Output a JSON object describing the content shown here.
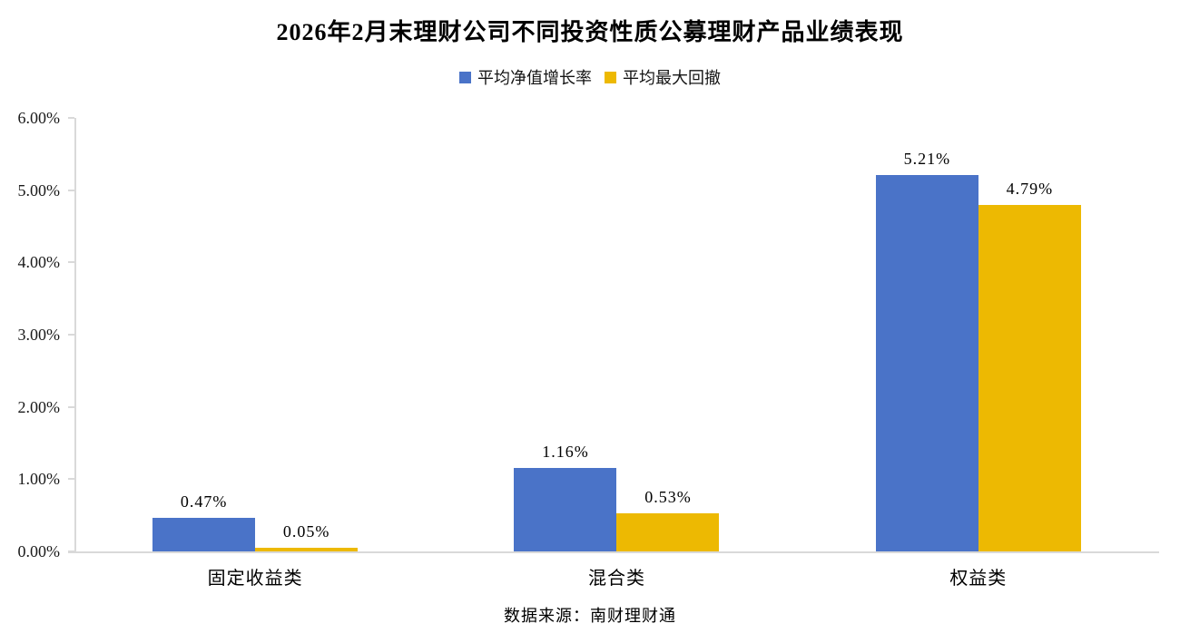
{
  "source_note": "数据来源：南财理财通",
  "chart_data": {
    "type": "bar",
    "title": "2026年2月末理财公司不同投资性质公募理财产品业绩表现",
    "categories": [
      "固定收益类",
      "混合类",
      "权益类"
    ],
    "series": [
      {
        "name": "平均净值增长率",
        "color": "#4a73c8",
        "values": [
          0.47,
          1.16,
          5.21
        ],
        "labels": [
          "0.47%",
          "1.16%",
          "5.21%"
        ]
      },
      {
        "name": "平均最大回撤",
        "color": "#edb902",
        "values": [
          0.05,
          0.53,
          4.79
        ],
        "labels": [
          "0.05%",
          "0.53%",
          "4.79%"
        ]
      }
    ],
    "xlabel": "",
    "ylabel": "",
    "ylim": [
      0,
      6
    ],
    "y_ticks": [
      "0.00%",
      "1.00%",
      "2.00%",
      "3.00%",
      "4.00%",
      "5.00%",
      "6.00%"
    ],
    "grid": false,
    "legend_position": "top",
    "axis_color": "#d9d9d9"
  }
}
